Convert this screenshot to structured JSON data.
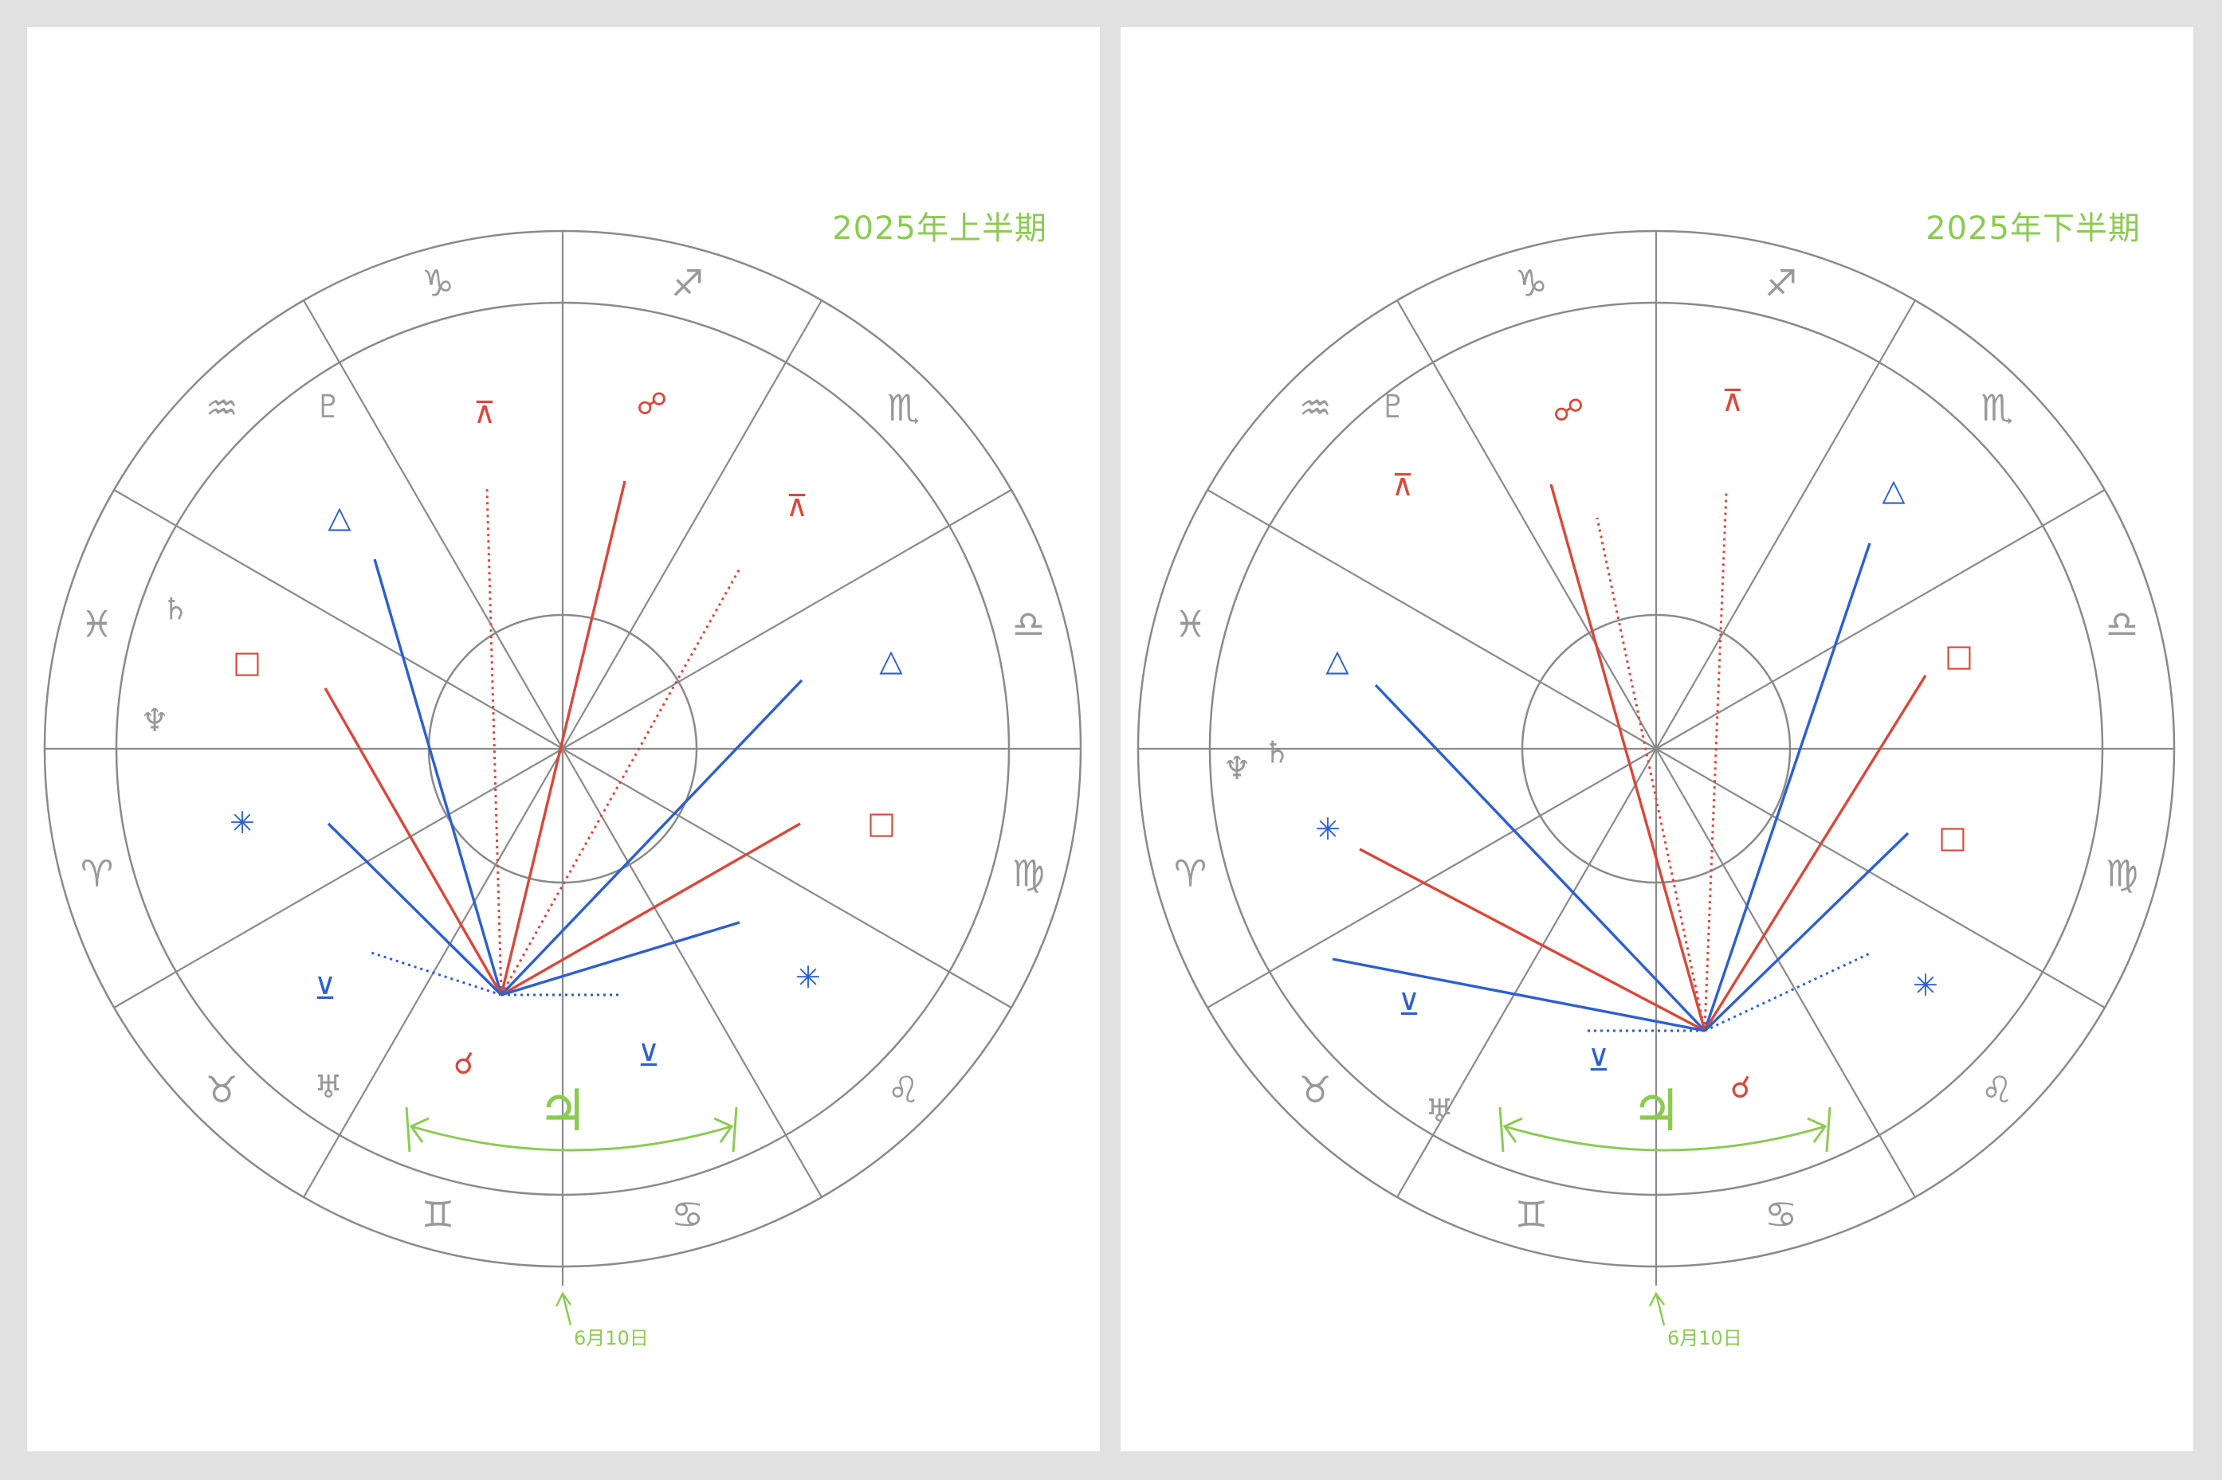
{
  "colors": {
    "background": "#e1e1e1",
    "panel": "#ffffff",
    "wheel_lines": "#8a8a8a",
    "sign_glyphs": "#999999",
    "accent_green": "#8ccb52",
    "aspect_red": "#d9483b",
    "aspect_blue": "#2d5fd0"
  },
  "panels": [
    {
      "title": "2025年上半期",
      "date_marker": "6月10日",
      "wheel": {
        "signs_clockwise_from_bottom_left": [
          "♊",
          "♉",
          "♈",
          "♓",
          "♒",
          "♑",
          "♐",
          "♏",
          "♎",
          "♍",
          "♌",
          "♋"
        ],
        "planets": [
          {
            "symbol": "♇",
            "name": "pluto",
            "color": "#999999"
          },
          {
            "symbol": "♄",
            "name": "saturn",
            "color": "#999999"
          },
          {
            "symbol": "♆",
            "name": "neptune",
            "color": "#999999"
          },
          {
            "symbol": "♅",
            "name": "uranus",
            "color": "#999999"
          },
          {
            "symbol": "♃",
            "name": "jupiter",
            "color": "#8ccb52"
          }
        ],
        "aspects": [
          {
            "symbol": "⊼",
            "type": "quincunx",
            "color": "#d9483b"
          },
          {
            "symbol": "☍",
            "type": "opposition",
            "color": "#d9483b"
          },
          {
            "symbol": "⊼",
            "type": "quincunx",
            "color": "#d9483b"
          },
          {
            "symbol": "△",
            "type": "trine",
            "color": "#2d5fd0"
          },
          {
            "symbol": "□",
            "type": "square",
            "color": "#d9483b"
          },
          {
            "symbol": "△",
            "type": "trine",
            "color": "#2d5fd0"
          },
          {
            "symbol": "✳",
            "type": "sextile",
            "color": "#2d5fd0"
          },
          {
            "symbol": "□",
            "type": "square",
            "color": "#d9483b"
          },
          {
            "symbol": "⊻",
            "type": "semi-sextile",
            "color": "#2d5fd0"
          },
          {
            "symbol": "✳",
            "type": "sextile",
            "color": "#2d5fd0"
          },
          {
            "symbol": "⊻",
            "type": "semi-sextile",
            "color": "#2d5fd0"
          },
          {
            "symbol": "☌",
            "type": "conjunction",
            "color": "#d9483b"
          }
        ]
      }
    },
    {
      "title": "2025年下半期",
      "date_marker": "6月10日",
      "wheel": {
        "signs_clockwise_from_bottom_left": [
          "♊",
          "♉",
          "♈",
          "♓",
          "♒",
          "♑",
          "♐",
          "♏",
          "♎",
          "♍",
          "♌",
          "♋"
        ],
        "planets": [
          {
            "symbol": "♇",
            "name": "pluto",
            "color": "#999999"
          },
          {
            "symbol": "♄",
            "name": "saturn",
            "color": "#999999"
          },
          {
            "symbol": "♆",
            "name": "neptune",
            "color": "#999999"
          },
          {
            "symbol": "♅",
            "name": "uranus",
            "color": "#999999"
          },
          {
            "symbol": "♃",
            "name": "jupiter",
            "color": "#8ccb52"
          }
        ],
        "aspects": [
          {
            "symbol": "☍",
            "type": "opposition",
            "color": "#d9483b"
          },
          {
            "symbol": "⊼",
            "type": "quincunx",
            "color": "#d9483b"
          },
          {
            "symbol": "⊼",
            "type": "quincunx",
            "color": "#d9483b"
          },
          {
            "symbol": "△",
            "type": "trine",
            "color": "#2d5fd0"
          },
          {
            "symbol": "△",
            "type": "trine",
            "color": "#2d5fd0"
          },
          {
            "symbol": "□",
            "type": "square",
            "color": "#d9483b"
          },
          {
            "symbol": "✳",
            "type": "sextile",
            "color": "#2d5fd0"
          },
          {
            "symbol": "□",
            "type": "square",
            "color": "#d9483b"
          },
          {
            "symbol": "⊻",
            "type": "semi-sextile",
            "color": "#2d5fd0"
          },
          {
            "symbol": "✳",
            "type": "sextile",
            "color": "#2d5fd0"
          },
          {
            "symbol": "⊻",
            "type": "semi-sextile",
            "color": "#2d5fd0"
          },
          {
            "symbol": "☌",
            "type": "conjunction",
            "color": "#d9483b"
          }
        ]
      }
    }
  ]
}
